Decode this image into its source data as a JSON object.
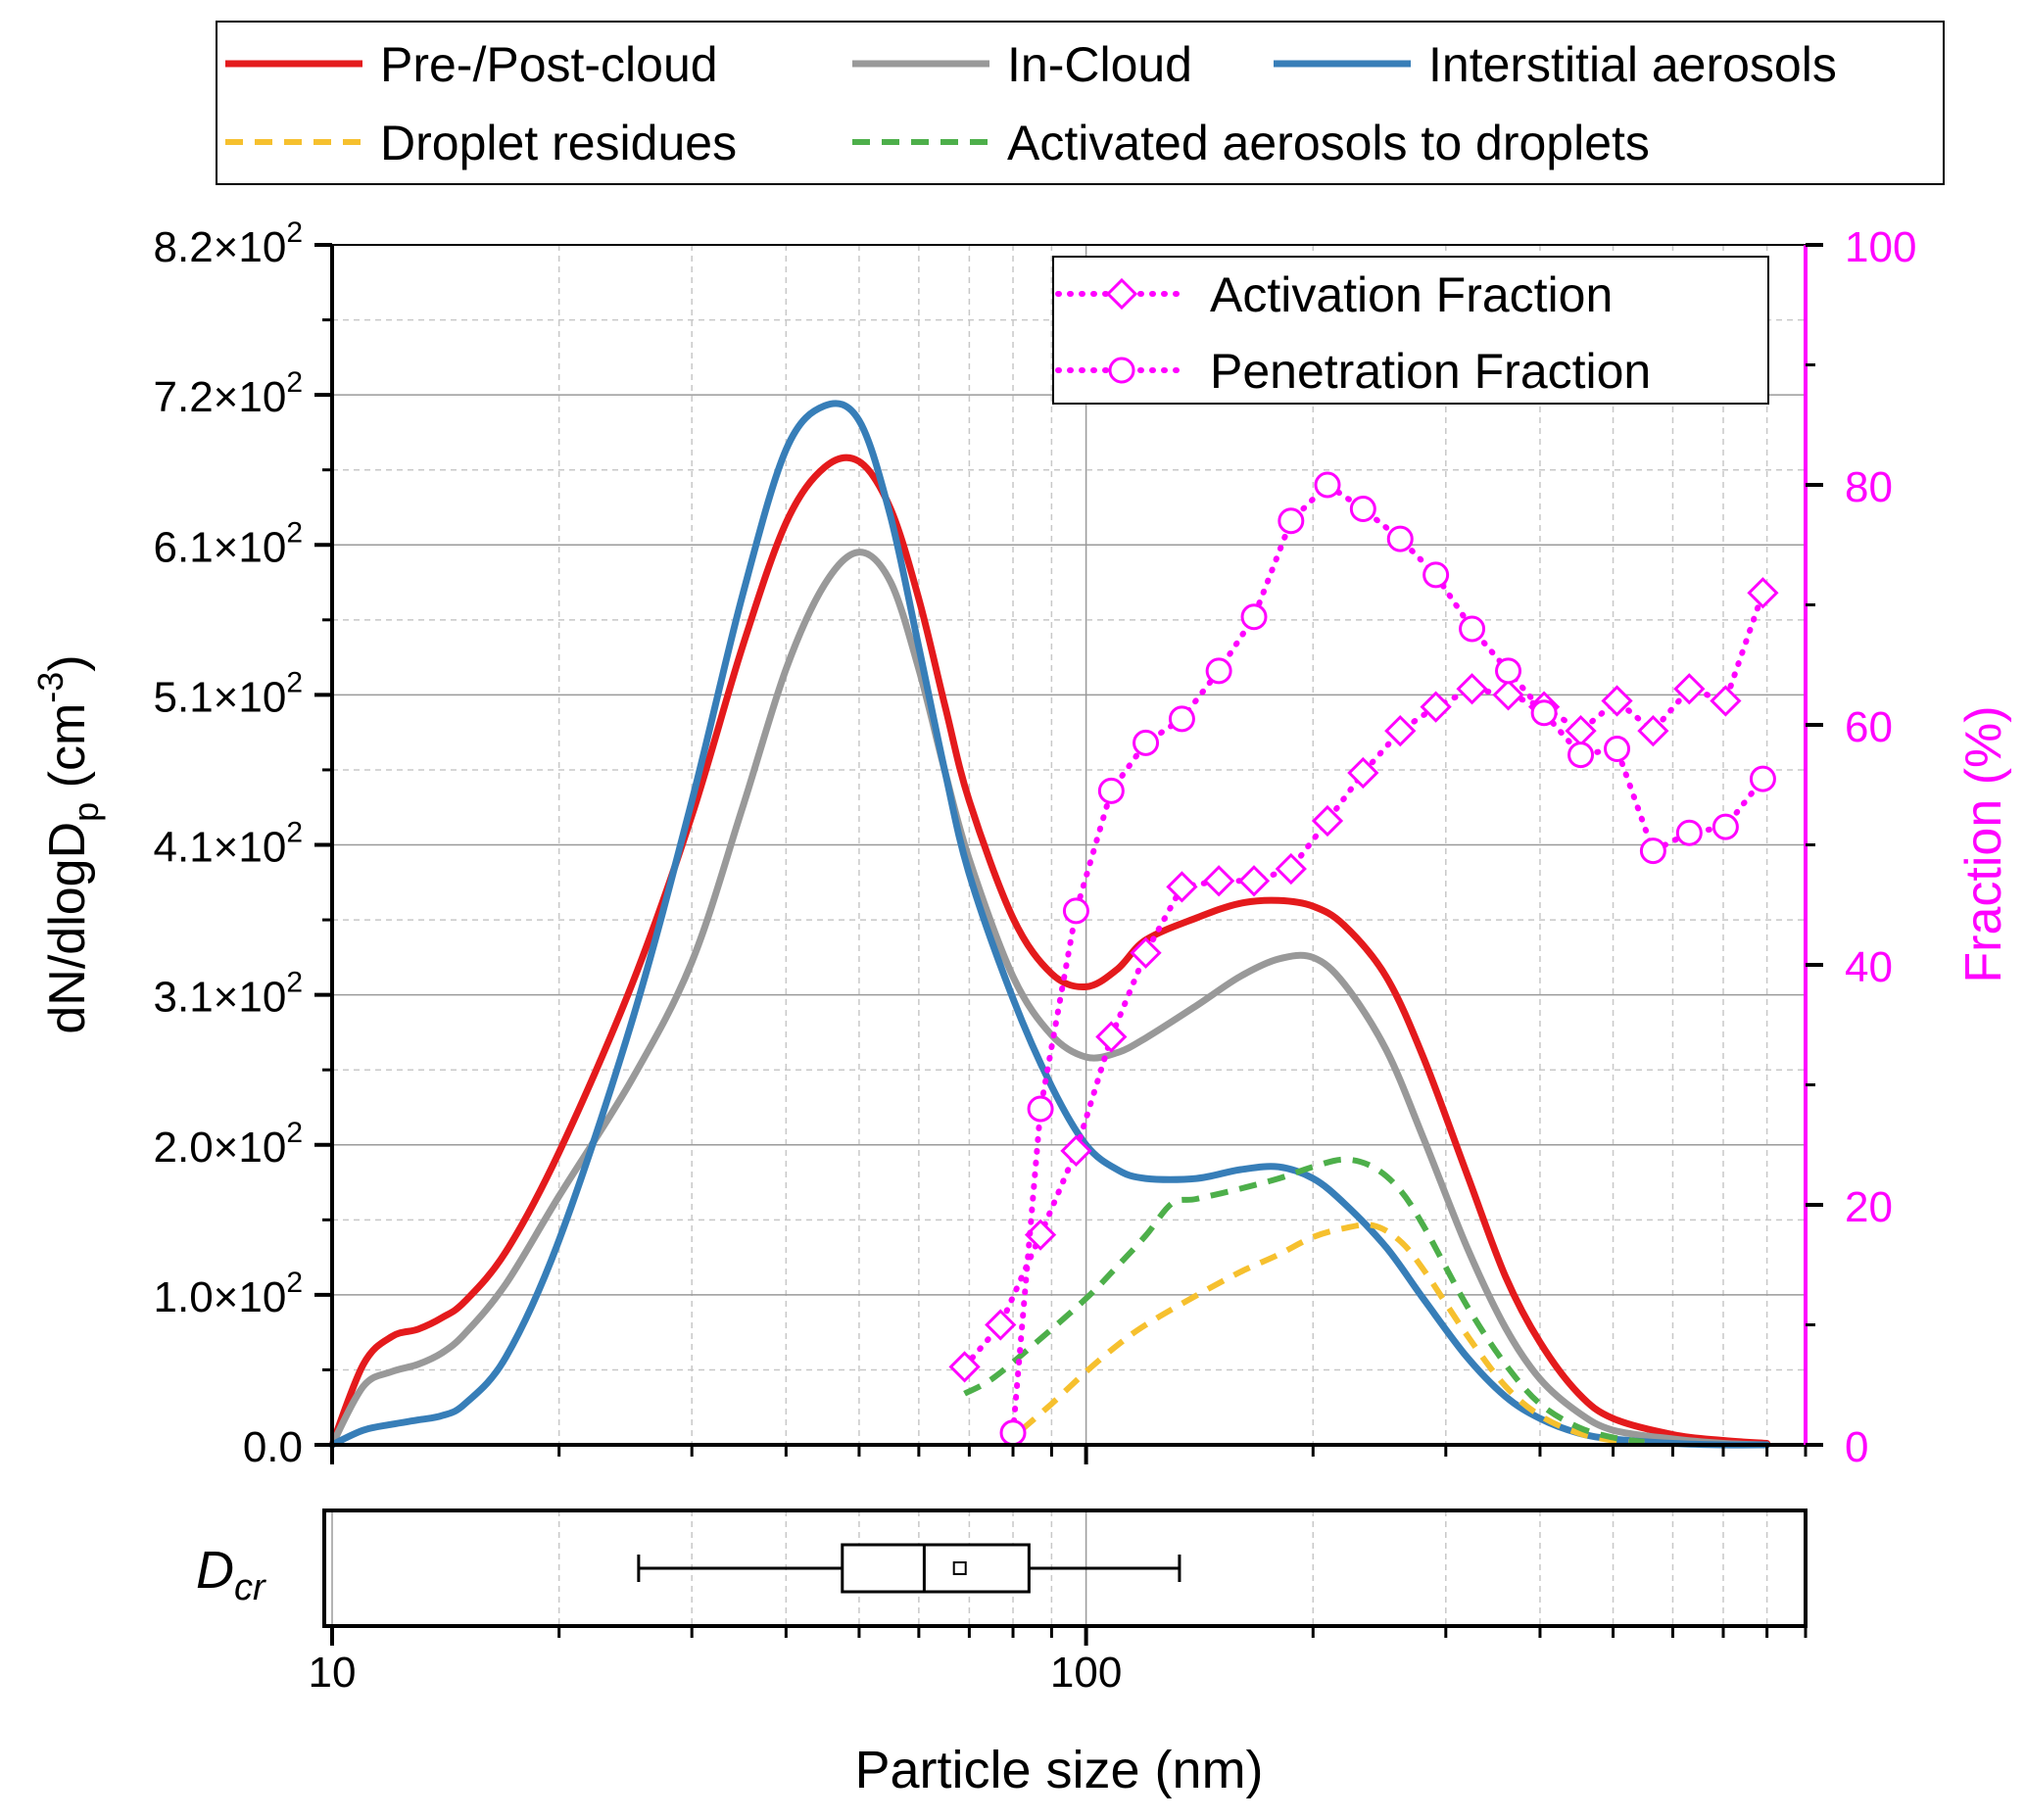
{
  "legend_top": {
    "entries": [
      {
        "name": "Pre-/Post-cloud",
        "color": "#e41a1c",
        "dash": "solid"
      },
      {
        "name": "In-Cloud",
        "color": "#999999",
        "dash": "solid"
      },
      {
        "name": "Interstitial aerosols",
        "color": "#377eb8",
        "dash": "solid"
      },
      {
        "name": "Droplet residues",
        "color": "#f6c02e",
        "dash": "dashed"
      },
      {
        "name": "Activated aerosols to droplets",
        "color": "#4daf4a",
        "dash": "dashed"
      }
    ]
  },
  "legend_inner": {
    "entries": [
      {
        "name": "Activation Fraction",
        "marker": "diamond",
        "color": "#ff00ff"
      },
      {
        "name": "Penetration Fraction",
        "marker": "circle",
        "color": "#ff00ff"
      }
    ]
  },
  "chart_data": {
    "type": "line",
    "xlabel": "Particle size (nm)",
    "x_scale": "log",
    "xlim": [
      10,
      900
    ],
    "x_ticks": [
      10,
      100
    ],
    "x_tick_labels": [
      "10",
      "100"
    ],
    "ylabel_left": "dN/dlogD",
    "ylabel_left_sub": "p",
    "ylabel_left_unit": "(cm",
    "ylabel_left_unit_sup": "-3",
    "ylabel_left_unit_close": ")",
    "ylim_left": [
      0,
      820
    ],
    "y_ticks_left": [
      0,
      102.5,
      205,
      307.5,
      410,
      512.5,
      615,
      717.5,
      820
    ],
    "y_tick_labels_left": [
      "0.0",
      "1.0×10",
      "2.0×10",
      "3.1×10",
      "4.1×10",
      "5.1×10",
      "6.1×10",
      "7.2×10",
      "8.2×10"
    ],
    "y_tick_label_sup": "2",
    "ylabel_right": "Fraction (%)",
    "ylim_right": [
      0,
      100
    ],
    "y_ticks_right": [
      0,
      20,
      40,
      60,
      80,
      100
    ],
    "y_tick_labels_right": [
      "0",
      "20",
      "40",
      "60",
      "80",
      "100"
    ],
    "right_axis_color": "#ff00ff",
    "grid": true,
    "series": [
      {
        "name": "Pre-/Post-cloud",
        "axis": "left",
        "style": "solid",
        "color": "#e41a1c",
        "x": [
          10,
          11,
          12,
          13,
          14,
          15,
          17,
          20,
          25,
          30,
          35,
          40,
          45,
          50,
          55,
          60,
          65,
          70,
          80,
          90,
          100,
          110,
          120,
          140,
          160,
          180,
          200,
          220,
          250,
          280,
          320,
          360,
          400,
          450,
          500,
          600,
          700,
          800
        ],
        "y": [
          0,
          55,
          74,
          79,
          87,
          98,
          132,
          200,
          315,
          430,
          545,
          630,
          668,
          672,
          640,
          578,
          505,
          440,
          360,
          322,
          313,
          325,
          345,
          360,
          370,
          372,
          368,
          355,
          320,
          265,
          185,
          115,
          70,
          35,
          18,
          7,
          3,
          1
        ]
      },
      {
        "name": "In-Cloud",
        "axis": "left",
        "style": "solid",
        "color": "#999999",
        "x": [
          10,
          11,
          12,
          13,
          14,
          15,
          17,
          20,
          25,
          30,
          35,
          40,
          45,
          50,
          55,
          60,
          65,
          70,
          80,
          90,
          100,
          110,
          120,
          140,
          160,
          180,
          200,
          220,
          250,
          280,
          320,
          360,
          400,
          450,
          500,
          600,
          700,
          800
        ],
        "y": [
          0,
          40,
          50,
          55,
          63,
          76,
          110,
          170,
          250,
          330,
          435,
          530,
          588,
          610,
          590,
          530,
          460,
          400,
          320,
          280,
          265,
          268,
          278,
          300,
          320,
          332,
          333,
          315,
          270,
          210,
          135,
          80,
          45,
          22,
          10,
          4,
          1,
          0
        ]
      },
      {
        "name": "Interstitial aerosols",
        "axis": "left",
        "style": "solid",
        "color": "#377eb8",
        "x": [
          10,
          11,
          12,
          13,
          14,
          15,
          17,
          20,
          25,
          30,
          35,
          40,
          45,
          50,
          55,
          60,
          65,
          70,
          80,
          90,
          100,
          110,
          120,
          140,
          160,
          180,
          200,
          220,
          250,
          280,
          320,
          360,
          400,
          450,
          500,
          600,
          700,
          800
        ],
        "y": [
          0,
          10,
          14,
          17,
          20,
          28,
          60,
          140,
          290,
          440,
          580,
          680,
          710,
          700,
          635,
          545,
          460,
          390,
          305,
          245,
          205,
          188,
          182,
          182,
          188,
          190,
          182,
          165,
          135,
          100,
          60,
          33,
          18,
          8,
          4,
          1,
          0,
          0
        ]
      },
      {
        "name": "Droplet residues",
        "axis": "left",
        "style": "dashed",
        "color": "#f6c02e",
        "x": [
          82,
          90,
          100,
          110,
          120,
          140,
          160,
          180,
          200,
          220,
          240,
          260,
          280,
          320,
          360,
          400,
          450,
          500,
          550
        ],
        "y": [
          10,
          28,
          50,
          68,
          82,
          102,
          118,
          130,
          142,
          148,
          150,
          140,
          120,
          75,
          40,
          20,
          8,
          3,
          1
        ]
      },
      {
        "name": "Activated aerosols to droplets",
        "axis": "left",
        "style": "dashed",
        "color": "#4daf4a",
        "x": [
          69,
          75,
          85,
          100,
          110,
          120,
          130,
          140,
          160,
          180,
          200,
          220,
          240,
          260,
          280,
          320,
          360,
          400,
          450,
          500,
          550
        ],
        "y": [
          35,
          45,
          68,
          100,
          122,
          143,
          165,
          168,
          175,
          182,
          190,
          195,
          190,
          175,
          150,
          95,
          55,
          28,
          12,
          5,
          2
        ]
      },
      {
        "name": "Activation Fraction",
        "axis": "right",
        "style": "dotted",
        "marker": "diamond",
        "color": "#ff00ff",
        "x": [
          69,
          77,
          87,
          97,
          108,
          120,
          134,
          150,
          167,
          187,
          209,
          233,
          261,
          291,
          325,
          363,
          405,
          453,
          506,
          565,
          631,
          705,
          790
        ],
        "y": [
          6.5,
          10,
          17.5,
          24.5,
          34,
          41,
          46.5,
          47,
          47,
          48,
          52,
          56,
          59.5,
          61.5,
          63,
          62.5,
          61.5,
          59.5,
          62,
          59.5,
          63,
          62,
          71
        ]
      },
      {
        "name": "Penetration Fraction",
        "axis": "right",
        "style": "dotted",
        "marker": "circle",
        "color": "#ff00ff",
        "x": [
          80,
          87,
          97,
          108,
          120,
          134,
          150,
          167,
          187,
          209,
          233,
          261,
          291,
          325,
          363,
          405,
          453,
          506,
          565,
          631,
          705,
          790
        ],
        "y": [
          1,
          28,
          44.5,
          54.5,
          58.5,
          60.5,
          64.5,
          69,
          77,
          80,
          78,
          75.5,
          72.5,
          68,
          64.5,
          61,
          57.5,
          58,
          49.5,
          51,
          51.5,
          55.5
        ]
      }
    ],
    "boxplot": {
      "label": "D",
      "label_sub": "cr",
      "whisker_low": 25.5,
      "q1": 47.5,
      "median": 61,
      "q3": 84,
      "whisker_high": 133,
      "mean": 68
    }
  }
}
